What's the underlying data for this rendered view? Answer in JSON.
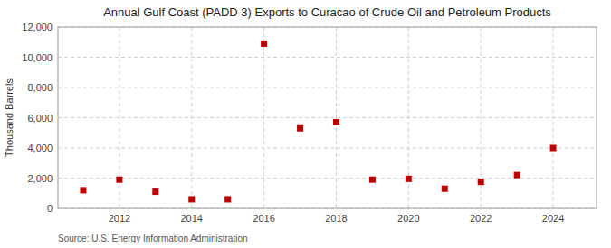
{
  "chart_data": {
    "type": "scatter",
    "title": "Annual Gulf Coast (PADD 3) Exports to Curacao of Crude Oil and Petroleum Products",
    "ylabel": "Thousand Barrels",
    "source": "Source: U.S. Energy Information Administration",
    "x": [
      2011,
      2012,
      2013,
      2014,
      2015,
      2016,
      2017,
      2018,
      2019,
      2020,
      2021,
      2022,
      2023,
      2024
    ],
    "values": [
      1200,
      1900,
      1100,
      600,
      600,
      10900,
      5300,
      5700,
      1900,
      1950,
      1300,
      1750,
      2200,
      4000
    ],
    "color": "#bb0000",
    "marker": "square",
    "xlim": [
      2010.3,
      2025.2
    ],
    "xticks": [
      2012,
      2014,
      2016,
      2018,
      2020,
      2022,
      2024
    ],
    "ylim": [
      0,
      12000
    ],
    "yticks": [
      0,
      {
        "value": 2000,
        "label": "2,000"
      },
      {
        "value": 4000,
        "label": "4,000"
      },
      {
        "value": 6000,
        "label": "6,000"
      },
      {
        "value": 8000,
        "label": "8,000"
      },
      {
        "value": 10000,
        "label": "10,000"
      },
      {
        "value": 12000,
        "label": "12,000"
      }
    ],
    "grid": true
  }
}
